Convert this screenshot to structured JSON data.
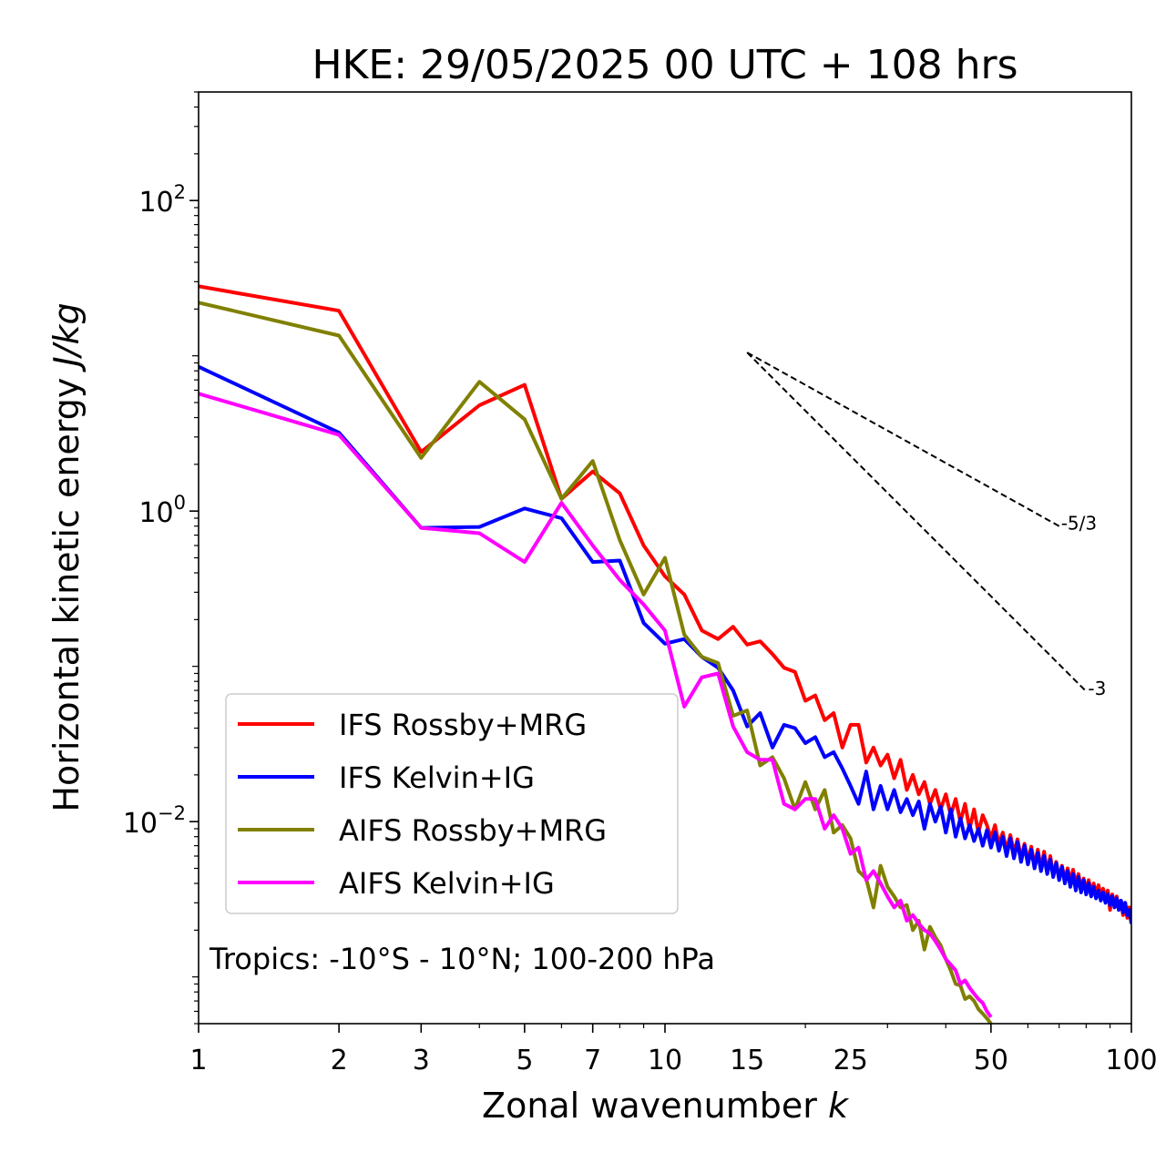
{
  "chart_data": {
    "type": "line",
    "title": "HKE: 29/05/2025 00 UTC + 108 hrs",
    "xlabel": "Zonal wavenumber",
    "xlabel_var": "k",
    "ylabel": "Horizontal kinetic energy",
    "ylabel_units": "J/kg",
    "xscale": "log",
    "yscale": "log",
    "xlim": [
      1,
      100
    ],
    "ylim": [
      0.0005,
      500
    ],
    "xticks": [
      1,
      2,
      3,
      5,
      7,
      10,
      15,
      25,
      50,
      100
    ],
    "xtick_labels": [
      "1",
      "2",
      "3",
      "5",
      "7",
      "10",
      "15",
      "25",
      "50",
      "100"
    ],
    "yticks": [
      0.01,
      1,
      100
    ],
    "ytick_bases": [
      "10",
      "10",
      "10"
    ],
    "ytick_exps": [
      "−2",
      "0",
      "2"
    ],
    "legend_position": "lower-left",
    "annotation": "Tropics: -10°S - 10°N; 100-200 hPa",
    "reference_lines": [
      {
        "label": "-5/3",
        "slope": -1.6667,
        "start": [
          15,
          10.5
        ],
        "end": [
          70,
          0.8
        ]
      },
      {
        "label": "-3",
        "slope": -3,
        "start": [
          15,
          10.5
        ],
        "end": [
          80,
          0.069
        ]
      }
    ],
    "series": [
      {
        "name": "IFS Rossby+MRG",
        "color": "#ff0000",
        "x": [
          1,
          2,
          3,
          4,
          5,
          6,
          7,
          8,
          9,
          10,
          11,
          12,
          13,
          14,
          15,
          16,
          17,
          18,
          19,
          20,
          21,
          22,
          23,
          24,
          25,
          26,
          27,
          28,
          29,
          30,
          31,
          32,
          33,
          34,
          35,
          36,
          37,
          38,
          39,
          40,
          41,
          42,
          43,
          44,
          45,
          46,
          47,
          48,
          49,
          50,
          51,
          52,
          53,
          54,
          55,
          56,
          57,
          58,
          59,
          60,
          61,
          62,
          63,
          64,
          65,
          66,
          67,
          68,
          69,
          70,
          71,
          72,
          73,
          74,
          75,
          76,
          77,
          78,
          79,
          80,
          81,
          82,
          83,
          84,
          85,
          86,
          87,
          88,
          89,
          90,
          91,
          92,
          93,
          94,
          95,
          96,
          97,
          98,
          99,
          100
        ],
        "y": [
          28,
          19.5,
          2.4,
          4.8,
          6.5,
          1.2,
          1.8,
          1.3,
          0.6,
          0.38,
          0.29,
          0.17,
          0.15,
          0.18,
          0.138,
          0.145,
          0.12,
          0.098,
          0.092,
          0.06,
          0.065,
          0.045,
          0.05,
          0.03,
          0.042,
          0.042,
          0.024,
          0.03,
          0.023,
          0.027,
          0.019,
          0.025,
          0.016,
          0.02,
          0.015,
          0.018,
          0.013,
          0.016,
          0.012,
          0.015,
          0.011,
          0.014,
          0.01,
          0.013,
          0.009,
          0.012,
          0.0085,
          0.011,
          0.0095,
          0.0078,
          0.0095,
          0.0071,
          0.0085,
          0.0065,
          0.0082,
          0.0063,
          0.0077,
          0.0058,
          0.0072,
          0.0056,
          0.0069,
          0.0052,
          0.0066,
          0.005,
          0.0064,
          0.0047,
          0.006,
          0.0045,
          0.0055,
          0.0043,
          0.0052,
          0.0042,
          0.005,
          0.0041,
          0.0049,
          0.0039,
          0.0046,
          0.0037,
          0.0043,
          0.0036,
          0.0042,
          0.0035,
          0.004,
          0.0034,
          0.0039,
          0.0033,
          0.0037,
          0.0032,
          0.0036,
          0.0027,
          0.0034,
          0.0029,
          0.0033,
          0.0027,
          0.0031,
          0.0025,
          0.003,
          0.0024,
          0.0028,
          0.0023
        ]
      },
      {
        "name": "IFS Kelvin+IG",
        "color": "#0000ff",
        "x": [
          1,
          2,
          3,
          4,
          5,
          6,
          7,
          8,
          9,
          10,
          11,
          12,
          13,
          14,
          15,
          16,
          17,
          18,
          19,
          20,
          21,
          22,
          23,
          24,
          25,
          26,
          27,
          28,
          29,
          30,
          31,
          32,
          33,
          34,
          35,
          36,
          37,
          38,
          39,
          40,
          41,
          42,
          43,
          44,
          45,
          46,
          47,
          48,
          49,
          50,
          51,
          52,
          53,
          54,
          55,
          56,
          57,
          58,
          59,
          60,
          61,
          62,
          63,
          64,
          65,
          66,
          67,
          68,
          69,
          70,
          71,
          72,
          73,
          74,
          75,
          76,
          77,
          78,
          79,
          80,
          81,
          82,
          83,
          84,
          85,
          86,
          87,
          88,
          89,
          90,
          91,
          92,
          93,
          94,
          95,
          96,
          97,
          98,
          99,
          100
        ],
        "y": [
          8.5,
          3.2,
          0.78,
          0.79,
          1.04,
          0.9,
          0.47,
          0.48,
          0.19,
          0.14,
          0.15,
          0.115,
          0.098,
          0.07,
          0.041,
          0.05,
          0.03,
          0.042,
          0.04,
          0.032,
          0.035,
          0.026,
          0.028,
          0.022,
          0.017,
          0.013,
          0.021,
          0.012,
          0.017,
          0.012,
          0.016,
          0.0115,
          0.014,
          0.011,
          0.0135,
          0.009,
          0.013,
          0.01,
          0.0125,
          0.0085,
          0.012,
          0.008,
          0.0105,
          0.0078,
          0.0095,
          0.0075,
          0.009,
          0.007,
          0.0088,
          0.0068,
          0.0085,
          0.0065,
          0.008,
          0.006,
          0.0078,
          0.0058,
          0.0074,
          0.0055,
          0.007,
          0.0053,
          0.0066,
          0.005,
          0.0063,
          0.0048,
          0.006,
          0.0046,
          0.0057,
          0.0044,
          0.0054,
          0.0042,
          0.0051,
          0.004,
          0.0048,
          0.0038,
          0.0046,
          0.0036,
          0.0044,
          0.0035,
          0.0042,
          0.0034,
          0.004,
          0.0033,
          0.0038,
          0.0032,
          0.0036,
          0.0031,
          0.0035,
          0.003,
          0.0034,
          0.0029,
          0.0033,
          0.0028,
          0.0032,
          0.0027,
          0.0031,
          0.0026,
          0.003,
          0.0025,
          0.0027,
          0.0022
        ]
      },
      {
        "name": "AIFS Rossby+MRG",
        "color": "#808000",
        "x": [
          1,
          2,
          3,
          4,
          5,
          6,
          7,
          8,
          9,
          10,
          11,
          12,
          13,
          14,
          15,
          16,
          17,
          18,
          19,
          20,
          21,
          22,
          23,
          24,
          25,
          26,
          27,
          28,
          29,
          30,
          31,
          32,
          33,
          34,
          35,
          36,
          37,
          38,
          39,
          40,
          41,
          42,
          43,
          44,
          45,
          46,
          47,
          48,
          49,
          50
        ],
        "y": [
          22,
          13.5,
          2.2,
          6.8,
          3.9,
          1.2,
          2.1,
          0.65,
          0.29,
          0.5,
          0.16,
          0.115,
          0.105,
          0.048,
          0.052,
          0.023,
          0.026,
          0.019,
          0.012,
          0.018,
          0.012,
          0.016,
          0.0085,
          0.0095,
          0.0078,
          0.0048,
          0.0043,
          0.0028,
          0.0052,
          0.0038,
          0.0033,
          0.0028,
          0.0029,
          0.002,
          0.0023,
          0.0015,
          0.0021,
          0.0018,
          0.0016,
          0.0013,
          0.0011,
          0.0009,
          0.00088,
          0.00072,
          0.00075,
          0.0007,
          0.00062,
          0.00058,
          0.00054,
          0.0005
        ]
      },
      {
        "name": "AIFS Kelvin+IG",
        "color": "#ff00ff",
        "x": [
          1,
          2,
          3,
          4,
          5,
          6,
          7,
          8,
          9,
          10,
          11,
          12,
          13,
          14,
          15,
          16,
          17,
          18,
          19,
          20,
          21,
          22,
          23,
          24,
          25,
          26,
          27,
          28,
          29,
          30,
          31,
          32,
          33,
          34,
          35,
          36,
          37,
          38,
          39,
          40,
          41,
          42,
          43,
          44,
          45,
          46,
          47,
          48,
          49,
          50
        ],
        "y": [
          5.7,
          3.1,
          0.78,
          0.72,
          0.47,
          1.13,
          0.6,
          0.36,
          0.25,
          0.17,
          0.055,
          0.085,
          0.09,
          0.041,
          0.028,
          0.025,
          0.025,
          0.013,
          0.012,
          0.014,
          0.014,
          0.009,
          0.011,
          0.009,
          0.0062,
          0.0068,
          0.0042,
          0.0048,
          0.004,
          0.0033,
          0.0028,
          0.0031,
          0.0023,
          0.0025,
          0.0022,
          0.002,
          0.0019,
          0.0017,
          0.0015,
          0.0013,
          0.0012,
          0.0011,
          0.0009,
          0.00095,
          0.00085,
          0.00078,
          0.00072,
          0.00068,
          0.0006,
          0.00055
        ]
      }
    ]
  }
}
